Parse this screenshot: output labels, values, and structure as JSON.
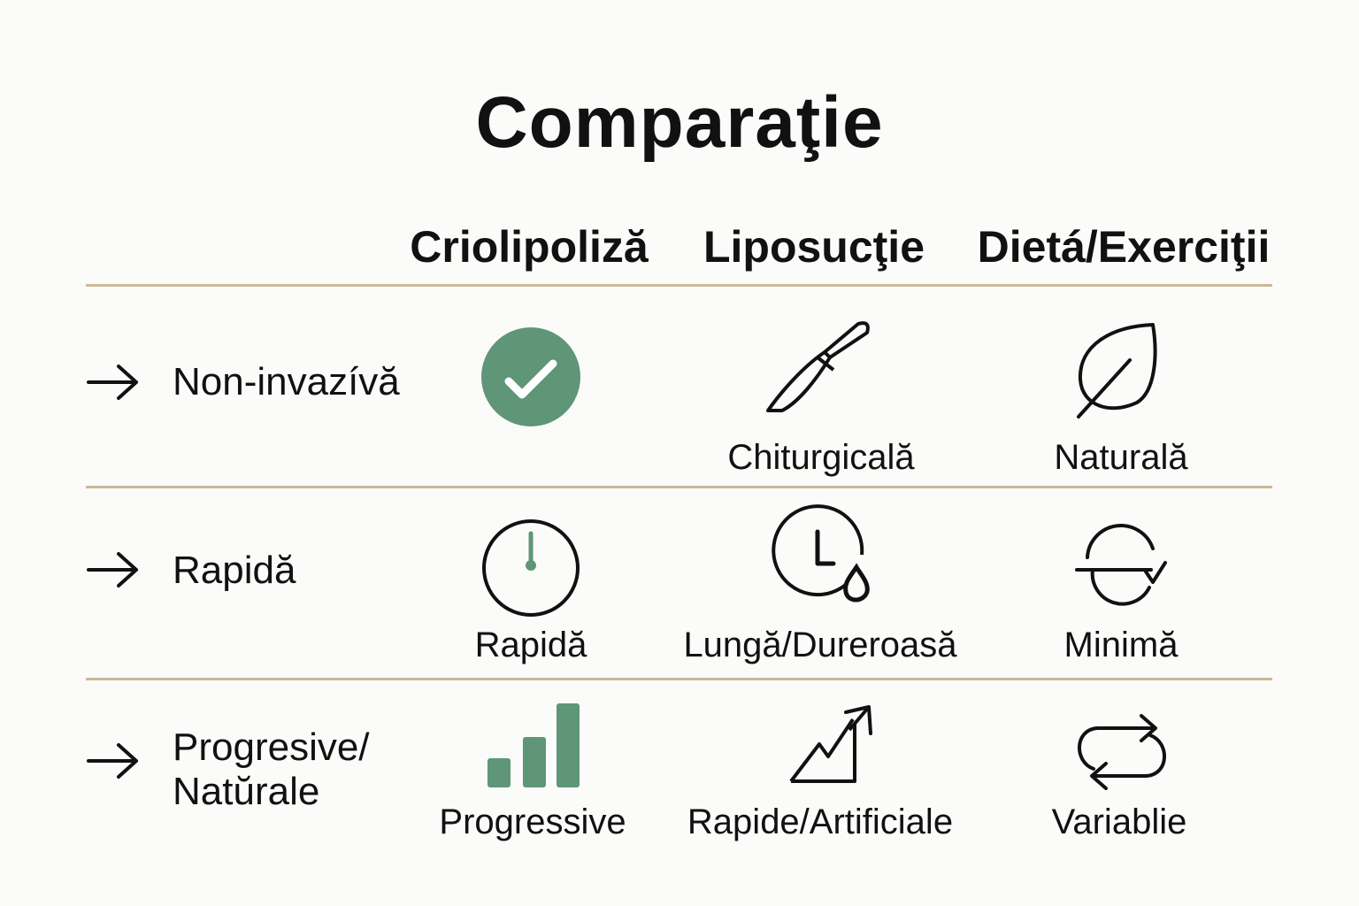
{
  "title": "Comparaţie",
  "columns": [
    "Criolipoliză",
    "Liposucţie",
    "Dietá/Exerciţii"
  ],
  "rows": [
    {
      "label": "Non-invazívă",
      "cells": [
        {
          "icon": "check-circle-icon",
          "caption": ""
        },
        {
          "icon": "scalpel-icon",
          "caption": "Chiturgicală"
        },
        {
          "icon": "leaf-icon",
          "caption": "Naturală"
        }
      ]
    },
    {
      "label": "Rapidă",
      "cells": [
        {
          "icon": "timer-icon",
          "caption": "Rapidă"
        },
        {
          "icon": "clock-drop-icon",
          "caption": "Lungă/Dureroasă"
        },
        {
          "icon": "cycle-check-icon",
          "caption": "Minimă"
        }
      ]
    },
    {
      "label": "Progresive/\nNatŭrale",
      "label_lines": [
        "Progresive/",
        "Natŭrale"
      ],
      "cells": [
        {
          "icon": "bar-chart-icon",
          "caption": "Progressive"
        },
        {
          "icon": "trend-up-icon",
          "caption": "Rapide/Artificiale"
        },
        {
          "icon": "repeat-icon",
          "caption": "Variablie"
        }
      ]
    }
  ],
  "colors": {
    "accent": "#5e9677",
    "rule": "#c9b99b",
    "text": "#111111",
    "background": "#fbfbfa"
  }
}
